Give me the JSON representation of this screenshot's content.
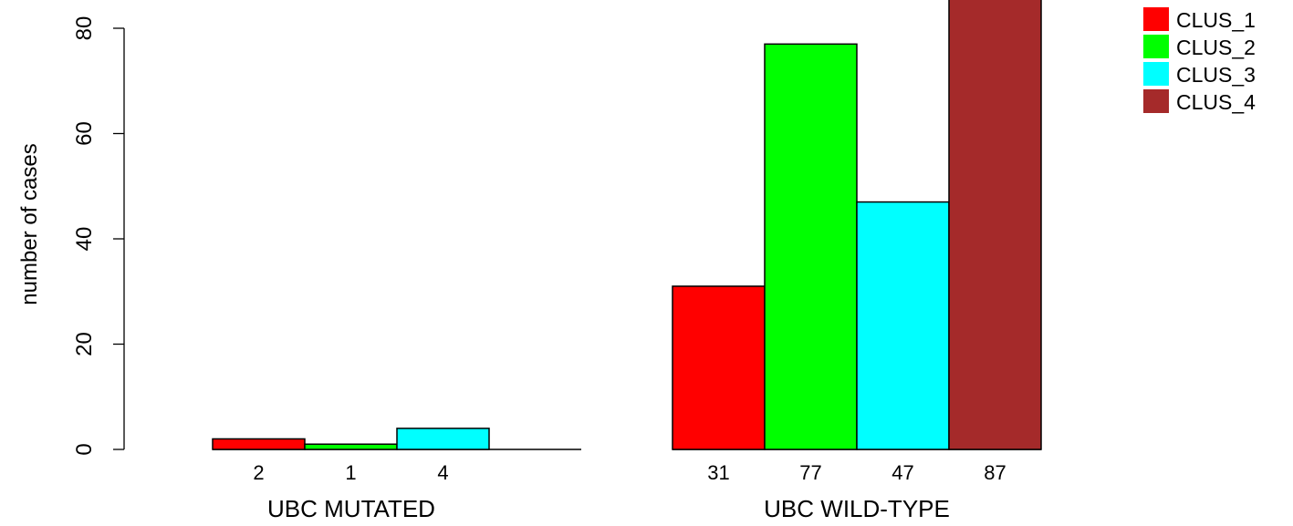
{
  "chart_data": {
    "type": "bar",
    "ylabel": "number of cases",
    "ylim": [
      0,
      80
    ],
    "yticks": [
      0,
      20,
      40,
      60,
      80
    ],
    "groups": [
      {
        "label": "UBC MUTATED",
        "values": [
          2,
          1,
          4,
          0
        ],
        "value_labels": [
          "2",
          "1",
          "4",
          ""
        ]
      },
      {
        "label": "UBC WILD-TYPE",
        "values": [
          31,
          77,
          47,
          87
        ],
        "value_labels": [
          "31",
          "77",
          "47",
          "87"
        ]
      }
    ],
    "series": [
      {
        "name": "CLUS_1",
        "color": "#ff0000"
      },
      {
        "name": "CLUS_2",
        "color": "#00ff00"
      },
      {
        "name": "CLUS_3",
        "color": "#00ffff"
      },
      {
        "name": "CLUS_4",
        "color": "#a52a2a"
      }
    ],
    "legend_position": "top-right"
  }
}
